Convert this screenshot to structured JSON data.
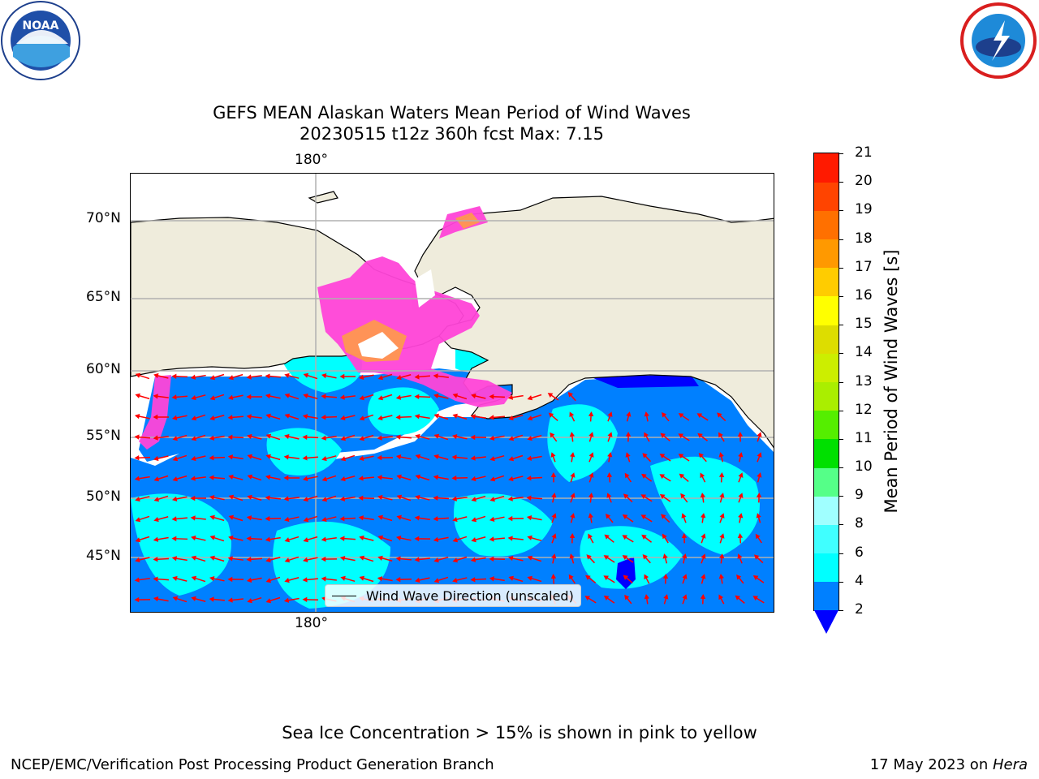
{
  "title": {
    "line1": "GEFS MEAN Alaskan Waters Mean Period of Wind Waves",
    "line2": "20230515 t12z 360h fcst   Max: 7.15"
  },
  "map": {
    "lon_label": "180°",
    "lat_labels": [
      "70°N",
      "65°N",
      "60°N",
      "55°N",
      "50°N",
      "45°N"
    ],
    "legend_label": "Wind Wave Direction (unscaled)",
    "colors": {
      "land": "#efecdc",
      "ocean_low": "#0080ff",
      "ocean_mid": "#00ffff",
      "ice": "#ff44d8",
      "arrow": "#ff0000",
      "grid": "#b0b0b0"
    }
  },
  "colorbar": {
    "title": "Mean Period of Wind Waves [s]",
    "ticks": [
      "2",
      "4",
      "6",
      "8",
      "9",
      "10",
      "11",
      "12",
      "13",
      "14",
      "15",
      "16",
      "17",
      "18",
      "19",
      "20",
      "21"
    ],
    "colors": [
      "#0080ff",
      "#00ffff",
      "#40ffff",
      "#a0ffff",
      "#55ff88",
      "#00e000",
      "#55ee00",
      "#aaee00",
      "#ccee00",
      "#dddd00",
      "#ffff00",
      "#ffcc00",
      "#ff9900",
      "#ff7000",
      "#ff4400",
      "#ff1a00"
    ],
    "under_color": "#0000ff"
  },
  "logos": {
    "left": "NOAA",
    "right": "NATIONAL WEATHER SERVICE"
  },
  "footer": {
    "note": "Sea Ice Concentration > 15% is shown in pink to yellow",
    "left": "NCEP/EMC/Verification Post Processing Product Generation Branch",
    "right_prefix": "17 May 2023 on ",
    "right_host": "Hera"
  }
}
